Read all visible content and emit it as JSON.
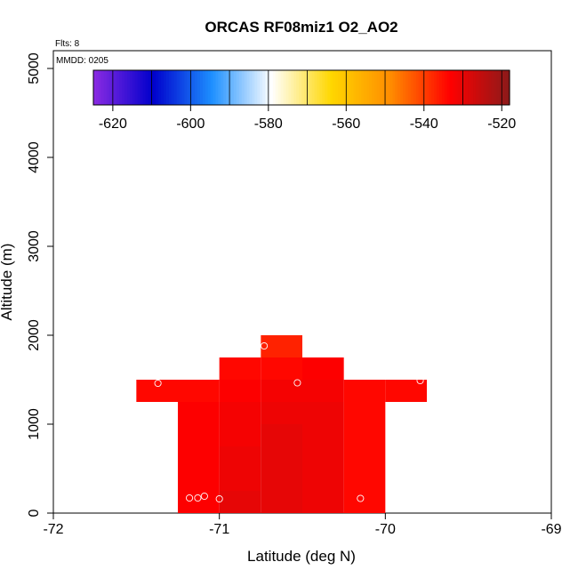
{
  "chart_data": {
    "type": "heatmap",
    "title": "ORCAS RF08miz1 O2_AO2",
    "xlabel": "Latitude (deg N)",
    "ylabel": "Altitude (m)",
    "xlim": [
      -72,
      -69
    ],
    "ylim": [
      0,
      5200
    ],
    "x_ticks": [
      -72,
      -71,
      -70,
      -69
    ],
    "x_tick_labels": [
      "-72",
      "-71",
      "-70",
      "-69"
    ],
    "y_ticks": [
      0,
      1000,
      2000,
      3000,
      4000,
      5000
    ],
    "y_tick_labels": [
      "0",
      "1000",
      "2000",
      "3000",
      "4000",
      "5000"
    ],
    "annotations": {
      "flights": "Flts: 8",
      "mmdd": "MMDD: 0205"
    },
    "colorbar": {
      "min": -625,
      "max": -518,
      "ticks": [
        -620,
        -600,
        -580,
        -560,
        -540,
        -520
      ],
      "tick_labels": [
        "-620",
        "-600",
        "-580",
        "-560",
        "-540",
        "-520"
      ],
      "colors": [
        "#8b2be2",
        "#0000cc",
        "#1e90ff",
        "#ffffff",
        "#ffd700",
        "#ff8c00",
        "#ff0000",
        "#8b1a1a"
      ]
    },
    "cell_size": {
      "lat": 0.25,
      "alt": 250
    },
    "cells": [
      {
        "lat": -71.25,
        "alt": 0,
        "value": -533
      },
      {
        "lat": -71.0,
        "alt": 0,
        "value": -530
      },
      {
        "lat": -70.75,
        "alt": 0,
        "value": -530
      },
      {
        "lat": -70.5,
        "alt": 0,
        "value": -531
      },
      {
        "lat": -70.25,
        "alt": 0,
        "value": -534
      },
      {
        "lat": -71.25,
        "alt": 250,
        "value": -533
      },
      {
        "lat": -71.0,
        "alt": 250,
        "value": -531
      },
      {
        "lat": -70.75,
        "alt": 250,
        "value": -530
      },
      {
        "lat": -70.5,
        "alt": 250,
        "value": -531
      },
      {
        "lat": -70.25,
        "alt": 250,
        "value": -534
      },
      {
        "lat": -71.25,
        "alt": 500,
        "value": -533
      },
      {
        "lat": -71.0,
        "alt": 500,
        "value": -531
      },
      {
        "lat": -70.75,
        "alt": 500,
        "value": -530
      },
      {
        "lat": -70.5,
        "alt": 500,
        "value": -531
      },
      {
        "lat": -70.25,
        "alt": 500,
        "value": -534
      },
      {
        "lat": -71.25,
        "alt": 750,
        "value": -533
      },
      {
        "lat": -71.0,
        "alt": 750,
        "value": -532
      },
      {
        "lat": -70.75,
        "alt": 750,
        "value": -530
      },
      {
        "lat": -70.5,
        "alt": 750,
        "value": -531
      },
      {
        "lat": -70.25,
        "alt": 750,
        "value": -534
      },
      {
        "lat": -71.25,
        "alt": 1000,
        "value": -533
      },
      {
        "lat": -71.0,
        "alt": 1000,
        "value": -532
      },
      {
        "lat": -70.75,
        "alt": 1000,
        "value": -531
      },
      {
        "lat": -70.5,
        "alt": 1000,
        "value": -531
      },
      {
        "lat": -70.25,
        "alt": 1000,
        "value": -534
      },
      {
        "lat": -71.5,
        "alt": 1250,
        "value": -534
      },
      {
        "lat": -71.25,
        "alt": 1250,
        "value": -534
      },
      {
        "lat": -71.0,
        "alt": 1250,
        "value": -533
      },
      {
        "lat": -70.75,
        "alt": 1250,
        "value": -532
      },
      {
        "lat": -70.5,
        "alt": 1250,
        "value": -532
      },
      {
        "lat": -70.25,
        "alt": 1250,
        "value": -534
      },
      {
        "lat": -70.0,
        "alt": 1250,
        "value": -534
      },
      {
        "lat": -71.0,
        "alt": 1500,
        "value": -534
      },
      {
        "lat": -70.75,
        "alt": 1500,
        "value": -534
      },
      {
        "lat": -70.5,
        "alt": 1500,
        "value": -533
      },
      {
        "lat": -70.75,
        "alt": 1750,
        "value": -537
      }
    ],
    "points": [
      {
        "lat": -71.18,
        "alt": 170
      },
      {
        "lat": -71.13,
        "alt": 170
      },
      {
        "lat": -71.09,
        "alt": 190
      },
      {
        "lat": -71.0,
        "alt": 160
      },
      {
        "lat": -70.15,
        "alt": 165
      },
      {
        "lat": -71.37,
        "alt": 1460
      },
      {
        "lat": -70.53,
        "alt": 1465
      },
      {
        "lat": -69.79,
        "alt": 1490
      },
      {
        "lat": -70.73,
        "alt": 1880
      }
    ]
  }
}
